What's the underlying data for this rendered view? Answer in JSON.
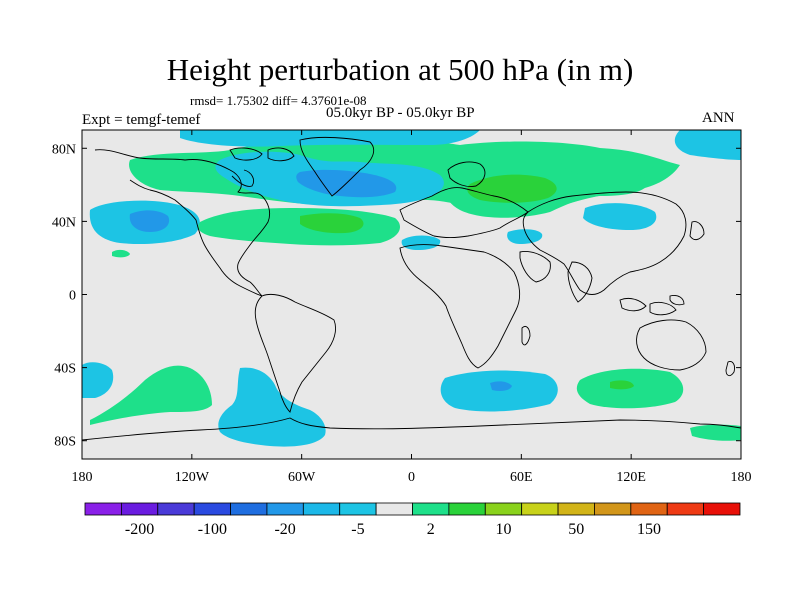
{
  "title": "Height perturbation at 500 hPa (in m)",
  "stats": "rmsd= 1.75302 diff= 4.37601e-08",
  "left_label": "Expt = temgf-temef",
  "center_label": "05.0kyr BP - 05.0kyr BP",
  "right_label": "ANN",
  "lat_ticks": [
    {
      "label": "80N",
      "lat": 80
    },
    {
      "label": "40N",
      "lat": 40
    },
    {
      "label": "0",
      "lat": 0
    },
    {
      "label": "40S",
      "lat": -40
    },
    {
      "label": "80S",
      "lat": -80
    }
  ],
  "lon_ticks": [
    {
      "label": "180",
      "lon": -180
    },
    {
      "label": "120W",
      "lon": -120
    },
    {
      "label": "60W",
      "lon": -60
    },
    {
      "label": "0",
      "lon": 0
    },
    {
      "label": "60E",
      "lon": 60
    },
    {
      "label": "120E",
      "lon": 120
    },
    {
      "label": "180",
      "lon": 180
    }
  ],
  "colorbar": {
    "colors": [
      "#8a20e8",
      "#6a1ce0",
      "#4a3ad8",
      "#2a4ae0",
      "#1f6ee0",
      "#2298e8",
      "#1cb8e8",
      "#1dc4e4",
      "#e8e8e8",
      "#1ee08a",
      "#2ad23a",
      "#8ad21c",
      "#c8d21a",
      "#d2b418",
      "#d2961a",
      "#e06414",
      "#ee3a14",
      "#e81008"
    ],
    "labels": [
      {
        "text": "-200",
        "boundary": 1
      },
      {
        "text": "-100",
        "boundary": 3
      },
      {
        "text": "-20",
        "boundary": 5
      },
      {
        "text": "-5",
        "boundary": 7
      },
      {
        "text": "2",
        "boundary": 9
      },
      {
        "text": "10",
        "boundary": 11
      },
      {
        "text": "50",
        "boundary": 13
      },
      {
        "text": "150",
        "boundary": 15
      }
    ]
  }
}
